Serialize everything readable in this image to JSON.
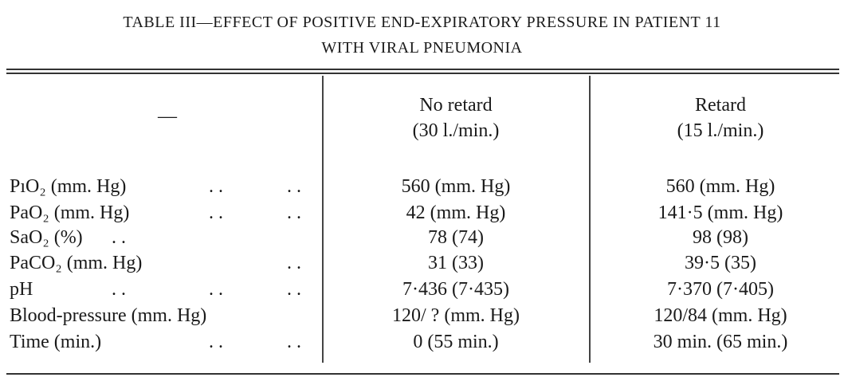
{
  "title": {
    "line1": "TABLE III—EFFECT OF POSITIVE END-EXPIRATORY PRESSURE IN PATIENT 11",
    "line2": "WITH VIRAL PNEUMONIA"
  },
  "table": {
    "header": [
      "—",
      [
        "No retard",
        "(30 l./min.)"
      ],
      [
        "Retard",
        "(15 l./min.)"
      ]
    ],
    "rows": [
      {
        "label": "PıO₂ (mm. Hg)",
        "leaders": [
          null,
          ". .",
          ". ."
        ],
        "cells": [
          "560 (mm. Hg)",
          "560 (mm. Hg)"
        ]
      },
      {
        "label": "PaO₂ (mm. Hg)",
        "leaders": [
          null,
          ". .",
          ". ."
        ],
        "cells": [
          "42 (mm. Hg)",
          "141·5 (mm. Hg)"
        ]
      },
      {
        "label": "SaO₂ (%)",
        "leaders": [
          ". .",
          null,
          null
        ],
        "cells": [
          "78 (74)",
          "98 (98)"
        ]
      },
      {
        "label": "PaCO₂ (mm. Hg)",
        "leaders": [
          null,
          null,
          ". ."
        ],
        "cells": [
          "31 (33)",
          "39·5 (35)"
        ]
      },
      {
        "label": "pH",
        "leaders": [
          ". .",
          ". .",
          ". ."
        ],
        "cells": [
          "7·436 (7·435)",
          "7·370 (7·405)"
        ]
      },
      {
        "label": "Blood-pressure (mm. Hg)",
        "leaders": [
          null,
          null,
          null
        ],
        "cells": [
          "120/ ? (mm. Hg)",
          "120/84 (mm. Hg)"
        ]
      },
      {
        "label": "Time (min.)",
        "leaders": [
          null,
          ". .",
          ". ."
        ],
        "cells": [
          "0 (55 min.)",
          "30 min. (65 min.)"
        ]
      }
    ]
  }
}
